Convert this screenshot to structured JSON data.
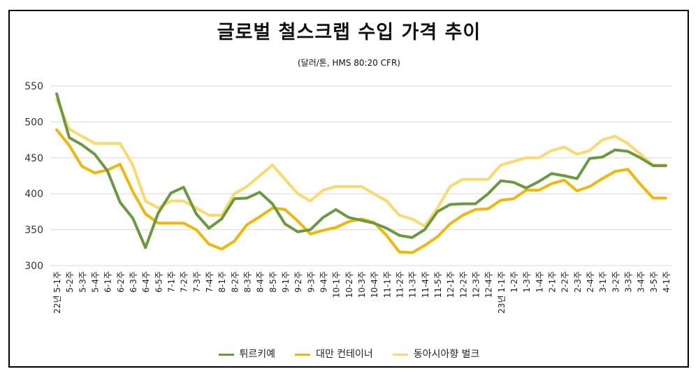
{
  "chart_data": {
    "type": "line",
    "title": "글로벌 철스크랩 수입 가격 추이",
    "subtitle": "(달러/톤, HMS 80:20  CFR)",
    "ylim": [
      300,
      550
    ],
    "yticks": [
      300,
      350,
      400,
      450,
      500,
      550
    ],
    "grid": true,
    "legend_position": "bottom",
    "categories": [
      "22년 5-1주",
      "5-2주",
      "5-3주",
      "5-4주",
      "6-1주",
      "6-2주",
      "6-3주",
      "6-4주",
      "6-5주",
      "7-1주",
      "7-2주",
      "7-3주",
      "7-4주",
      "8-1주",
      "8-2주",
      "8-3주",
      "8-4주",
      "8-5주",
      "9-1주",
      "9-2주",
      "9-3주",
      "9-4주",
      "10-1주",
      "10-2주",
      "10-3주",
      "10-4주",
      "11-1주",
      "11-2주",
      "11-3주",
      "11-4주",
      "11-5주",
      "12-1주",
      "12-2주",
      "12-3주",
      "12-4주",
      "23년 1-1주",
      "1-2주",
      "1-3주",
      "1-4주",
      "2-1주",
      "2-2주",
      "2-3주",
      "2-4주",
      "3-1주",
      "3-2주",
      "3-3주",
      "3-4주",
      "3-5주",
      "4-1주"
    ],
    "series": [
      {
        "name": "튀르키예",
        "color": "#6a9a3f",
        "values": [
          539,
          478,
          468,
          455,
          432,
          388,
          366,
          325,
          373,
          401,
          409,
          372,
          352,
          365,
          393,
          394,
          402,
          386,
          358,
          347,
          350,
          367,
          378,
          367,
          363,
          359,
          352,
          342,
          339,
          350,
          375,
          385,
          386,
          386,
          400,
          418,
          416,
          408,
          417,
          428,
          425,
          421,
          449,
          451,
          461,
          459,
          450,
          439,
          439
        ]
      },
      {
        "name": "대만 컨테이너",
        "color": "#f2b705",
        "values": [
          489,
          467,
          438,
          429,
          433,
          441,
          403,
          372,
          359,
          359,
          359,
          350,
          330,
          323,
          334,
          357,
          368,
          380,
          378,
          362,
          344,
          349,
          353,
          361,
          365,
          360,
          342,
          319,
          318,
          328,
          340,
          358,
          370,
          378,
          379,
          391,
          393,
          405,
          405,
          414,
          419,
          404,
          410,
          421,
          431,
          434,
          413,
          394,
          394
        ]
      },
      {
        "name": "동아시아향 벌크",
        "color": "#fcd96b",
        "values": [
          531,
          490,
          480,
          470,
          470,
          470,
          440,
          390,
          380,
          390,
          390,
          380,
          370,
          370,
          400,
          410,
          425,
          440,
          420,
          400,
          390,
          405,
          410,
          410,
          410,
          400,
          390,
          370,
          365,
          355,
          380,
          410,
          420,
          420,
          420,
          440,
          445,
          450,
          450,
          460,
          465,
          455,
          460,
          475,
          480,
          470,
          455,
          440,
          440
        ]
      }
    ]
  }
}
